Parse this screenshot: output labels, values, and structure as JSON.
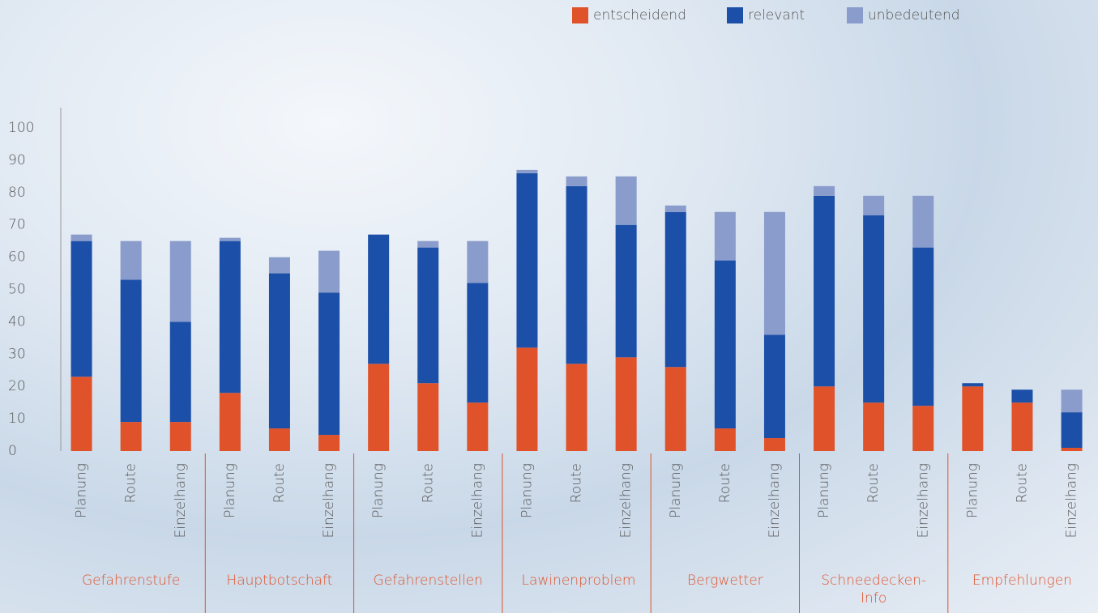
{
  "chart_data": {
    "type": "stacked_bar",
    "groups": [
      {
        "name": "Gefahrenstufe",
        "categories": [
          "Planung",
          "Route",
          "Einzelhang"
        ],
        "highlight": true
      },
      {
        "name": "Hauptbotschaft",
        "categories": [
          "Planung",
          "Route",
          "Einzelhang"
        ]
      },
      {
        "name": "Gefahrenstellen",
        "categories": [
          "Planung",
          "Route",
          "Einzelhang"
        ]
      },
      {
        "name": "Lawinenproblem",
        "categories": [
          "Planung",
          "Route",
          "Einzelhang"
        ]
      },
      {
        "name": "Bergwetter",
        "categories": [
          "Planung",
          "Route",
          "Einzelhang"
        ]
      },
      {
        "name": "Schneedecken-Info",
        "categories": [
          "Planung",
          "Route",
          "Einzelhang"
        ]
      },
      {
        "name": "Empfehlungen",
        "categories": [
          "Planung",
          "Route",
          "Einzelhang"
        ]
      }
    ],
    "series": [
      {
        "name": "entscheidend",
        "color": "#e0522a",
        "values": [
          23,
          9,
          9,
          18,
          7,
          5,
          27,
          21,
          15,
          32,
          27,
          29,
          26,
          7,
          4,
          20,
          15,
          14,
          20,
          15,
          1
        ]
      },
      {
        "name": "relevant",
        "color": "#1c50a8",
        "values": [
          42,
          44,
          31,
          47,
          48,
          44,
          40,
          42,
          37,
          54,
          55,
          41,
          48,
          52,
          32,
          59,
          58,
          49,
          1,
          4,
          11
        ]
      },
      {
        "name": "unbedeutend",
        "color": "#8a9ccc",
        "values": [
          2,
          12,
          25,
          1,
          5,
          13,
          0,
          2,
          13,
          1,
          3,
          15,
          2,
          15,
          38,
          3,
          6,
          16,
          0,
          0,
          7
        ]
      }
    ],
    "highlight_color": "#e0522a",
    "ylim": [
      0,
      100
    ],
    "yticks": [
      0,
      10,
      20,
      30,
      40,
      50,
      60,
      70,
      80,
      90,
      100
    ],
    "legend": "top-right"
  }
}
